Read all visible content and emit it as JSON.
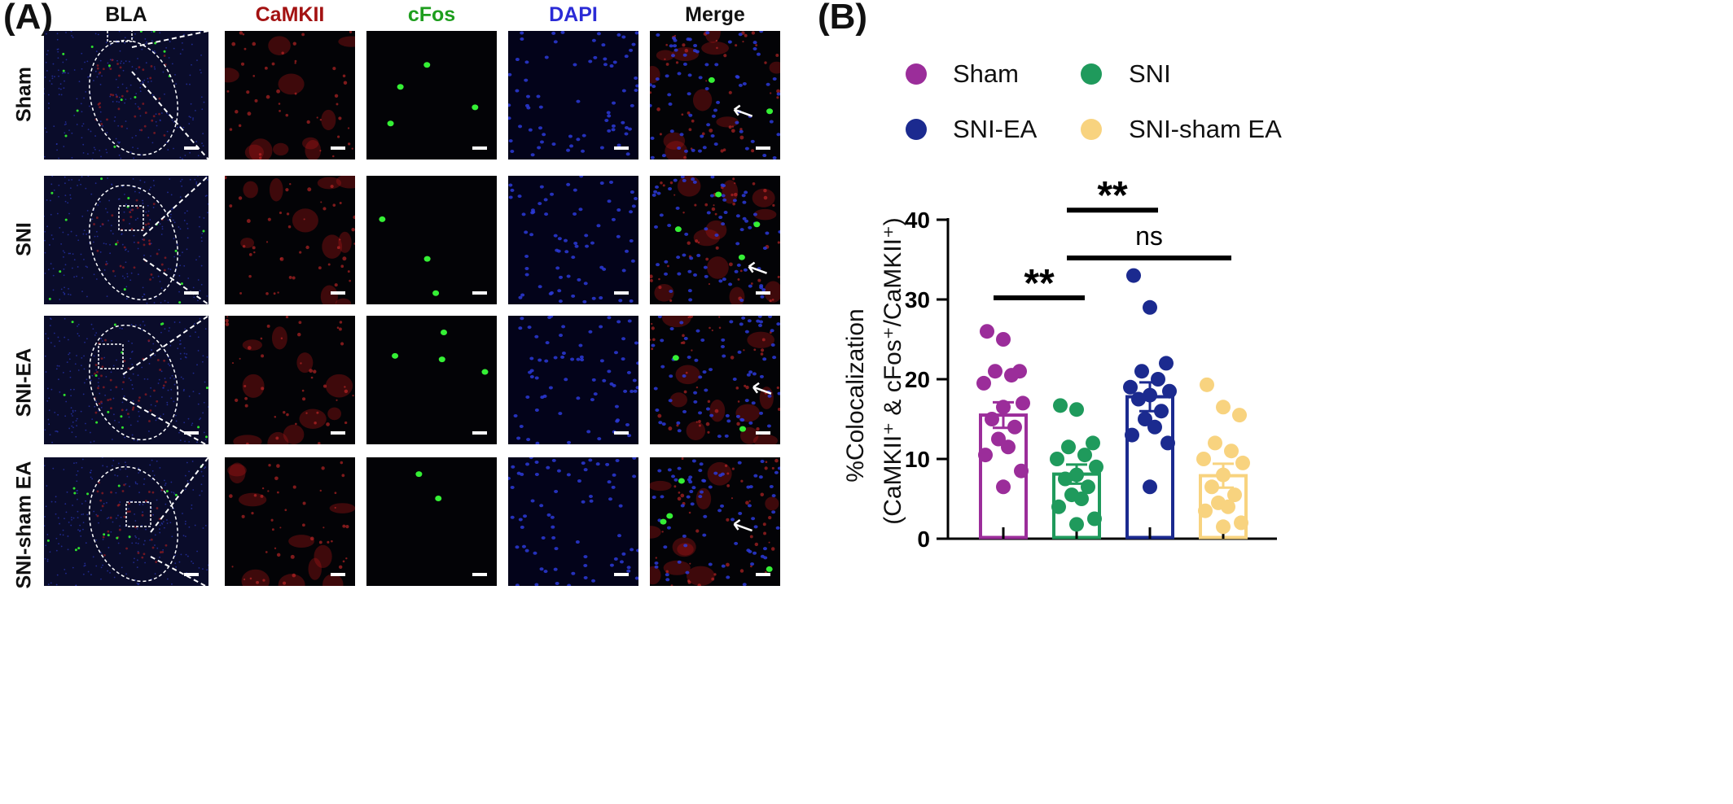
{
  "panels": {
    "a_label": "(A)",
    "b_label": "(B)"
  },
  "columns": [
    {
      "label": "BLA",
      "color": "#111111"
    },
    {
      "label": "CaMKII",
      "color": "#a31212"
    },
    {
      "label": "cFos",
      "color": "#1e9e1e"
    },
    {
      "label": "DAPI",
      "color": "#2b2bd6"
    },
    {
      "label": "Merge",
      "color": "#111111"
    }
  ],
  "rows": [
    "Sham",
    "SNI",
    "SNI-EA",
    "SNI-sham EA"
  ],
  "legend": [
    {
      "label": "Sham",
      "color": "#9b2d9a"
    },
    {
      "label": "SNI",
      "color": "#1f9a5c"
    },
    {
      "label": "SNI-EA",
      "color": "#1b2a8f"
    },
    {
      "label": "SNI-sham EA",
      "color": "#f8d37f"
    }
  ],
  "chart_data": {
    "type": "bar",
    "categories": [
      "Sham",
      "SNI",
      "SNI-EA",
      "SNI-sham EA"
    ],
    "ylabel_line1": "%Colocalization",
    "ylabel_line2": "(CaMKII⁺ & cFos⁺/CaMKII⁺)",
    "ylim": [
      0,
      40
    ],
    "yticks": [
      0,
      10,
      20,
      30,
      40
    ],
    "grid": false,
    "series": [
      {
        "name": "Sham",
        "mean": 15.5,
        "sem": 1.6,
        "color": "#9b2d9a",
        "points": [
          26,
          25,
          21,
          21,
          20.5,
          19.5,
          17,
          16.5,
          15,
          14,
          12.5,
          11.5,
          10.5,
          8.5,
          6.5
        ]
      },
      {
        "name": "SNI",
        "mean": 8.1,
        "sem": 1.2,
        "color": "#1f9a5c",
        "points": [
          16.7,
          16.2,
          12,
          11.5,
          10.5,
          10,
          9,
          8,
          7.5,
          6.5,
          5.5,
          5,
          4,
          2.5,
          1.8
        ]
      },
      {
        "name": "SNI-EA",
        "mean": 17.8,
        "sem": 1.8,
        "color": "#1b2a8f",
        "points": [
          33,
          29,
          22,
          21,
          20,
          19,
          18.5,
          18,
          17.5,
          16,
          15,
          14,
          13,
          12,
          6.5
        ]
      },
      {
        "name": "SNI-sham EA",
        "mean": 7.9,
        "sem": 1.5,
        "color": "#f8d37f",
        "points": [
          19.3,
          16.5,
          15.5,
          12,
          11,
          10,
          9.5,
          8,
          6.5,
          5.5,
          4.5,
          4,
          3.5,
          2,
          1.5
        ]
      }
    ],
    "annotations": [
      {
        "text": "**",
        "from": "Sham",
        "to": "SNI",
        "y": 30.2
      },
      {
        "text": "**",
        "from": "SNI",
        "to": "SNI-EA",
        "y": 41.2
      },
      {
        "text": "ns",
        "from": "SNI",
        "to": "SNI-sham EA",
        "y": 35.2
      }
    ]
  }
}
